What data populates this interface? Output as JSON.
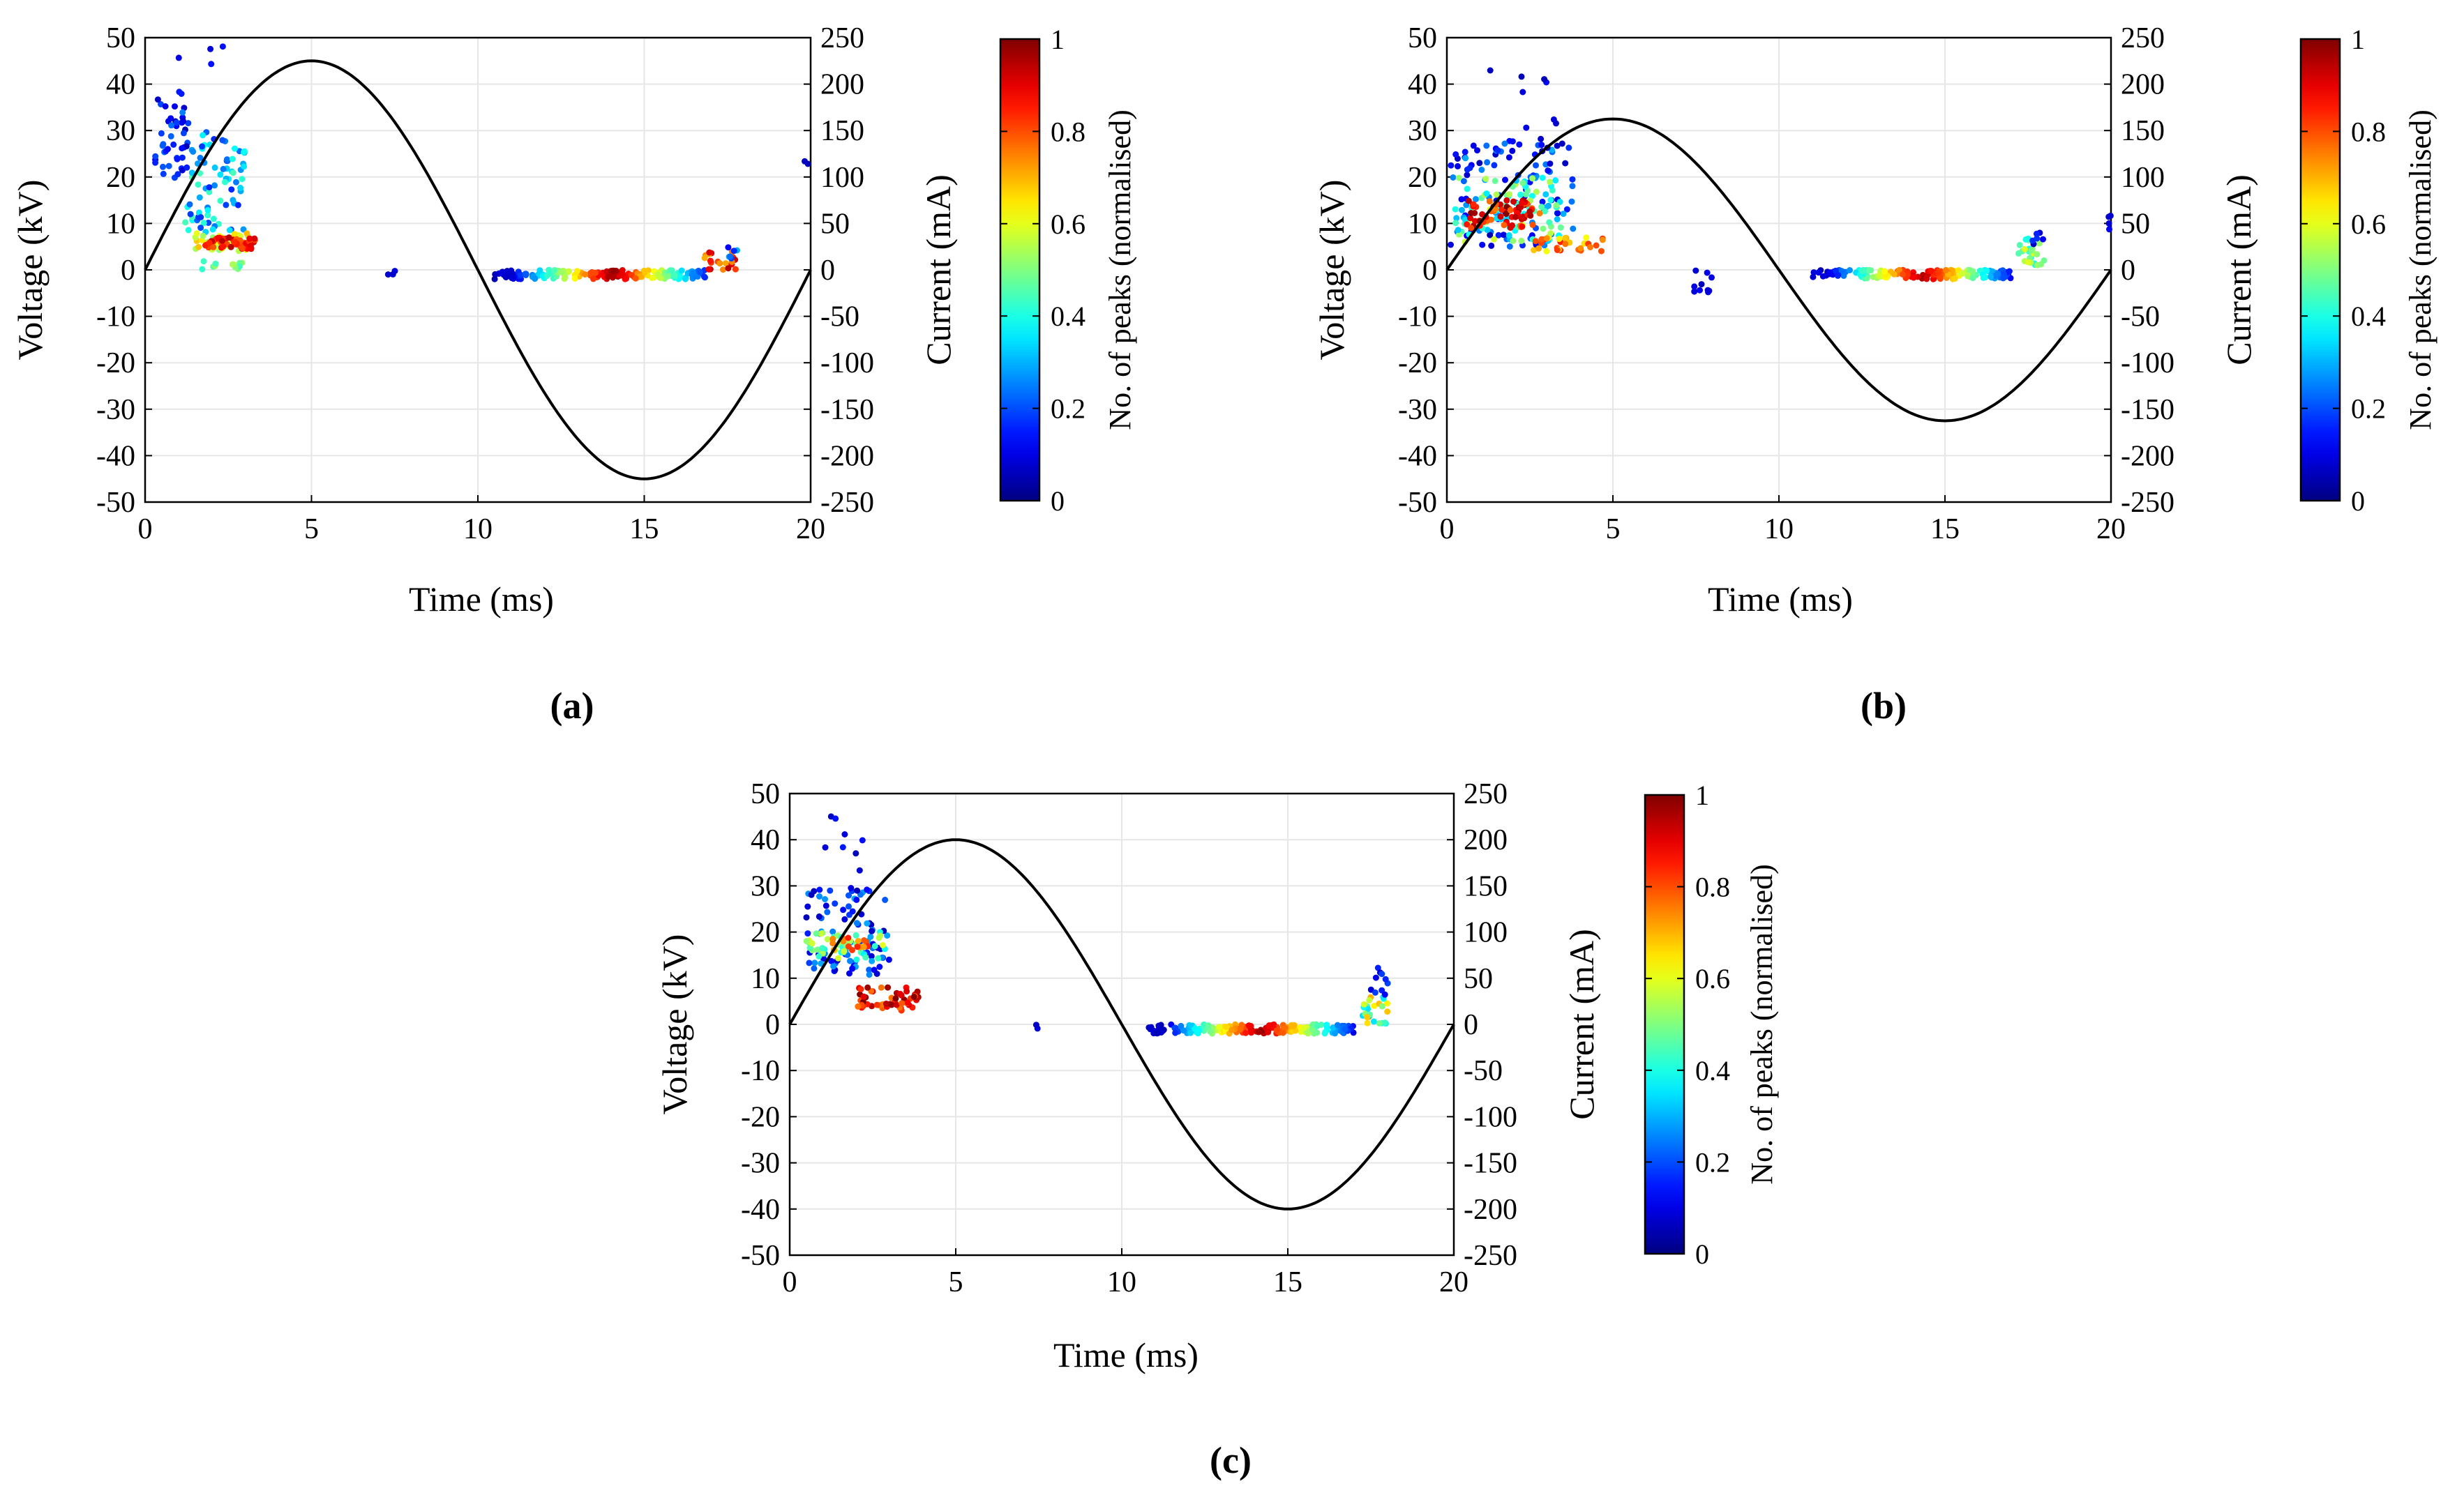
{
  "chart_data": [
    {
      "id": "a",
      "type": "scatter",
      "caption": "(a)",
      "xlabel": "Time (ms)",
      "ylabel": "Voltage (kV)",
      "y2label": "Current (mA)",
      "colorbar_label": "No. of peaks (normalised)",
      "xlim": [
        0,
        20
      ],
      "ylim": [
        -50,
        50
      ],
      "y2lim": [
        -250,
        250
      ],
      "xticks": [
        "0",
        "5",
        "10",
        "15",
        "20"
      ],
      "yticks": [
        "50",
        "40",
        "30",
        "20",
        "10",
        "0",
        "-10",
        "-20",
        "-30",
        "-40",
        "-50"
      ],
      "y2ticks": [
        "250",
        "200",
        "150",
        "100",
        "50",
        "0",
        "-50",
        "-100",
        "-150",
        "-200",
        "-250"
      ],
      "cticks": [
        "1",
        "0.8",
        "0.6",
        "0.4",
        "0.2",
        "0"
      ],
      "current_peak_kV": 45,
      "clusters": [
        {
          "x": [
            0.3,
            1.3
          ],
          "y": [
            18,
            38
          ],
          "n": 45,
          "c": [
            0.05,
            0.25
          ]
        },
        {
          "x": [
            1.2,
            3.0
          ],
          "y": [
            8,
            30
          ],
          "n": 80,
          "c": [
            0.15,
            0.45
          ]
        },
        {
          "x": [
            1.5,
            3.2
          ],
          "y": [
            4,
            8
          ],
          "n": 40,
          "c": [
            0.5,
            0.7
          ]
        },
        {
          "x": [
            1.8,
            3.3
          ],
          "y": [
            4.5,
            7
          ],
          "n": 50,
          "c": [
            0.75,
            0.95
          ]
        },
        {
          "x": [
            1.6,
            3.0
          ],
          "y": [
            0,
            2
          ],
          "n": 12,
          "c": [
            0.4,
            0.55
          ]
        },
        {
          "x": [
            0.6,
            2.5
          ],
          "y": [
            38,
            50
          ],
          "n": 5,
          "c": [
            0.05,
            0.15
          ]
        },
        {
          "x": [
            7.3,
            7.6
          ],
          "y": [
            -1,
            0
          ],
          "n": 3,
          "c": [
            0.05,
            0.1
          ]
        },
        {
          "x": [
            10.5,
            17.0
          ],
          "y": [
            -2,
            0
          ],
          "n": 180,
          "grad": true
        },
        {
          "x": [
            16.8,
            17.8
          ],
          "y": [
            0,
            4
          ],
          "n": 20,
          "c": [
            0.7,
            0.95
          ]
        },
        {
          "x": [
            17.4,
            17.8
          ],
          "y": [
            2,
            5
          ],
          "n": 6,
          "c": [
            0.1,
            0.3
          ]
        },
        {
          "x": [
            19.8,
            20.0
          ],
          "y": [
            22,
            24
          ],
          "n": 2,
          "c": [
            0.05,
            0.1
          ]
        }
      ]
    },
    {
      "id": "b",
      "type": "scatter",
      "caption": "(b)",
      "xlabel": "Time (ms)",
      "ylabel": "Voltage (kV)",
      "y2label": "Current (mA)",
      "colorbar_label": "No. of peaks (normalised)",
      "xlim": [
        0,
        20
      ],
      "ylim": [
        -50,
        50
      ],
      "y2lim": [
        -250,
        250
      ],
      "xticks": [
        "0",
        "5",
        "10",
        "15",
        "20"
      ],
      "yticks": [
        "50",
        "40",
        "30",
        "20",
        "10",
        "0",
        "-10",
        "-20",
        "-30",
        "-40",
        "-50"
      ],
      "y2ticks": [
        "250",
        "200",
        "150",
        "100",
        "50",
        "0",
        "-50",
        "-100",
        "-150",
        "-200",
        "-250"
      ],
      "cticks": [
        "1",
        "0.8",
        "0.6",
        "0.4",
        "0.2",
        "0"
      ],
      "current_peak_kV": 32.5,
      "clusters": [
        {
          "x": [
            0.1,
            3.8
          ],
          "y": [
            5,
            28
          ],
          "n": 110,
          "c": [
            0.05,
            0.3
          ]
        },
        {
          "x": [
            0.2,
            3.5
          ],
          "y": [
            6,
            20
          ],
          "n": 90,
          "c": [
            0.3,
            0.6
          ]
        },
        {
          "x": [
            0.6,
            2.8
          ],
          "y": [
            9,
            15
          ],
          "n": 70,
          "c": [
            0.75,
            1.0
          ]
        },
        {
          "x": [
            2.6,
            4.8
          ],
          "y": [
            4,
            7
          ],
          "n": 30,
          "c": [
            0.6,
            0.85
          ]
        },
        {
          "x": [
            1.2,
            3.5
          ],
          "y": [
            25,
            45
          ],
          "n": 12,
          "c": [
            0.05,
            0.15
          ]
        },
        {
          "x": [
            7.4,
            8.0
          ],
          "y": [
            -5,
            0
          ],
          "n": 10,
          "c": [
            0.05,
            0.12
          ]
        },
        {
          "x": [
            11.0,
            17.0
          ],
          "y": [
            -2,
            0
          ],
          "n": 170,
          "grad": true
        },
        {
          "x": [
            17.2,
            18.0
          ],
          "y": [
            1,
            7
          ],
          "n": 25,
          "c": [
            0.4,
            0.6
          ]
        },
        {
          "x": [
            17.6,
            18.0
          ],
          "y": [
            4,
            8
          ],
          "n": 6,
          "c": [
            0.05,
            0.2
          ]
        },
        {
          "x": [
            19.9,
            20.0
          ],
          "y": [
            8,
            12
          ],
          "n": 4,
          "c": [
            0.05,
            0.12
          ]
        }
      ]
    },
    {
      "id": "c",
      "type": "scatter",
      "caption": "(c)",
      "xlabel": "Time (ms)",
      "ylabel": "Voltage (kV)",
      "y2label": "Current (mA)",
      "colorbar_label": "No. of peaks (normalised)",
      "xlim": [
        0,
        20
      ],
      "ylim": [
        -50,
        50
      ],
      "y2lim": [
        -250,
        250
      ],
      "xticks": [
        "0",
        "5",
        "10",
        "15",
        "20"
      ],
      "yticks": [
        "50",
        "40",
        "30",
        "20",
        "10",
        "0",
        "-10",
        "-20",
        "-30",
        "-40",
        "-50"
      ],
      "y2ticks": [
        "250",
        "200",
        "150",
        "100",
        "50",
        "0",
        "-50",
        "-100",
        "-150",
        "-200",
        "-250"
      ],
      "cticks": [
        "1",
        "0.8",
        "0.6",
        "0.4",
        "0.2",
        "0"
      ],
      "current_peak_kV": 40,
      "clusters": [
        {
          "x": [
            0.5,
            3.0
          ],
          "y": [
            10,
            30
          ],
          "n": 90,
          "c": [
            0.05,
            0.3
          ]
        },
        {
          "x": [
            0.5,
            3.0
          ],
          "y": [
            14,
            20
          ],
          "n": 45,
          "c": [
            0.35,
            0.6
          ]
        },
        {
          "x": [
            1.2,
            2.4
          ],
          "y": [
            16,
            19
          ],
          "n": 15,
          "c": [
            0.7,
            0.85
          ]
        },
        {
          "x": [
            1.9,
            3.9
          ],
          "y": [
            3,
            8
          ],
          "n": 55,
          "c": [
            0.75,
            1.0
          ]
        },
        {
          "x": [
            1.0,
            2.5
          ],
          "y": [
            28,
            47
          ],
          "n": 10,
          "c": [
            0.05,
            0.15
          ]
        },
        {
          "x": [
            7.4,
            7.6
          ],
          "y": [
            -1,
            0
          ],
          "n": 2,
          "c": [
            0.05,
            0.1
          ]
        },
        {
          "x": [
            10.8,
            17.0
          ],
          "y": [
            -2,
            0
          ],
          "n": 170,
          "grad": true
        },
        {
          "x": [
            17.2,
            18.0
          ],
          "y": [
            0,
            8
          ],
          "n": 25,
          "c": [
            0.3,
            0.7
          ]
        },
        {
          "x": [
            17.5,
            18.1
          ],
          "y": [
            6,
            13
          ],
          "n": 10,
          "c": [
            0.05,
            0.2
          ]
        }
      ]
    }
  ]
}
